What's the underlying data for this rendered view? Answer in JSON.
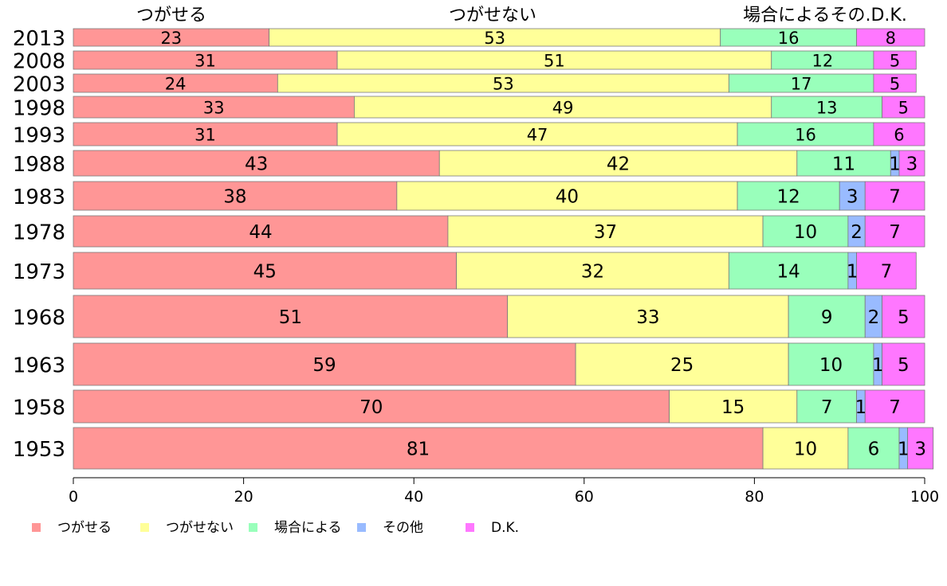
{
  "chart_data": {
    "type": "bar",
    "orientation": "horizontal",
    "stacked": true,
    "categories": [
      "2013",
      "2008",
      "2003",
      "1998",
      "1993",
      "1988",
      "1983",
      "1978",
      "1973",
      "1968",
      "1963",
      "1958",
      "1953"
    ],
    "series": [
      {
        "name": "つがせる",
        "color": "#ff9696",
        "values": [
          23,
          31,
          24,
          33,
          31,
          43,
          38,
          44,
          45,
          51,
          59,
          70,
          81
        ]
      },
      {
        "name": "つがせない",
        "color": "#ffff99",
        "values": [
          53,
          51,
          53,
          49,
          47,
          42,
          40,
          37,
          32,
          33,
          25,
          15,
          10
        ]
      },
      {
        "name": "場合による",
        "color": "#99ffbb",
        "values": [
          16,
          12,
          17,
          13,
          16,
          11,
          12,
          10,
          14,
          9,
          10,
          7,
          6
        ]
      },
      {
        "name": "その他",
        "color": "#99bbff",
        "values": [
          null,
          null,
          null,
          null,
          null,
          1,
          3,
          2,
          1,
          2,
          1,
          1,
          1
        ]
      },
      {
        "name": "D.K.",
        "color": "#ff77ff",
        "values": [
          8,
          5,
          5,
          5,
          6,
          3,
          7,
          7,
          7,
          5,
          5,
          7,
          3
        ]
      }
    ],
    "top_labels": [
      "つがせる",
      "つがせない",
      "場合によるその.D.K."
    ],
    "xticks": [
      0,
      20,
      40,
      60,
      80,
      100
    ],
    "xlim": [
      0,
      100
    ],
    "legend_position": "bottom-left"
  }
}
